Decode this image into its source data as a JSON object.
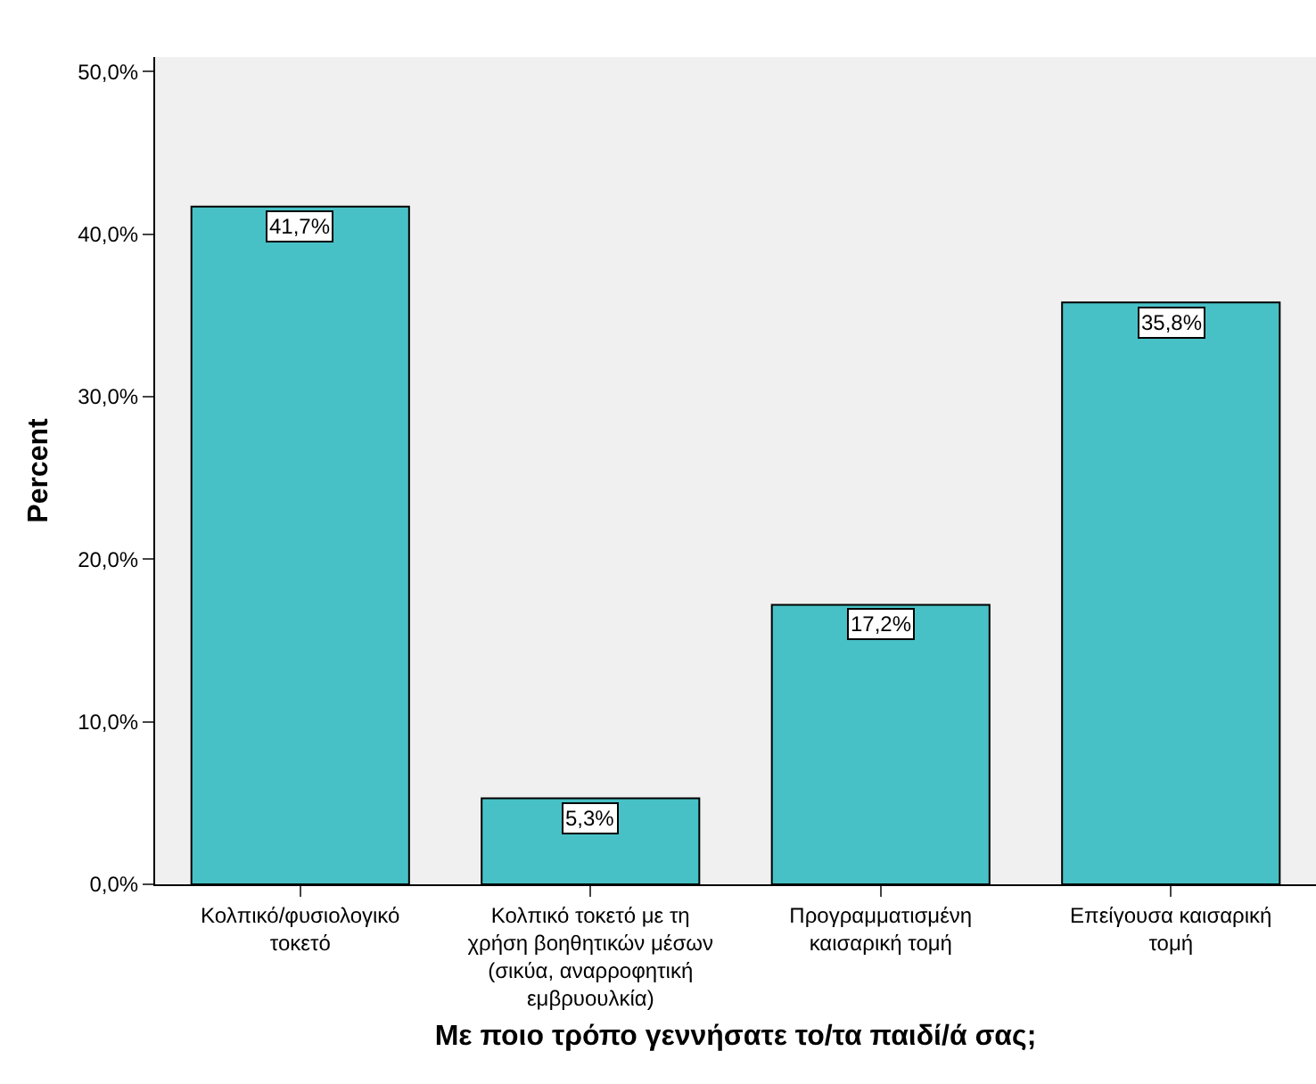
{
  "chart_data": {
    "type": "bar",
    "xlabel": "Με ποιο τρόπο γεννήσατε το/τα παιδί/ά σας;",
    "ylabel": "Percent",
    "categories": [
      "Κολπικό/φυσιολογικό τοκετό",
      "Κολπικό τοκετό με τη χρήση βοηθητικών μέσων (σικύα, αναρροφητική εμβρυουλκία)",
      "Προγραμματισμένη καισαρική τομή",
      "Επείγουσα καισαρική τομή"
    ],
    "values": [
      41.7,
      5.3,
      17.2,
      35.8
    ],
    "value_labels": [
      "41,7%",
      "5,3%",
      "17,2%",
      "35,8%"
    ],
    "color": "#48c1c6",
    "ylim": [
      0,
      50.9
    ],
    "yticks": [
      {
        "value": 0,
        "label": "0,0%"
      },
      {
        "value": 10,
        "label": "10,0%"
      },
      {
        "value": 20,
        "label": "20,0%"
      },
      {
        "value": 30,
        "label": "30,0%"
      },
      {
        "value": 40,
        "label": "40,0%"
      },
      {
        "value": 50,
        "label": "50,0%"
      }
    ],
    "grid": false
  }
}
